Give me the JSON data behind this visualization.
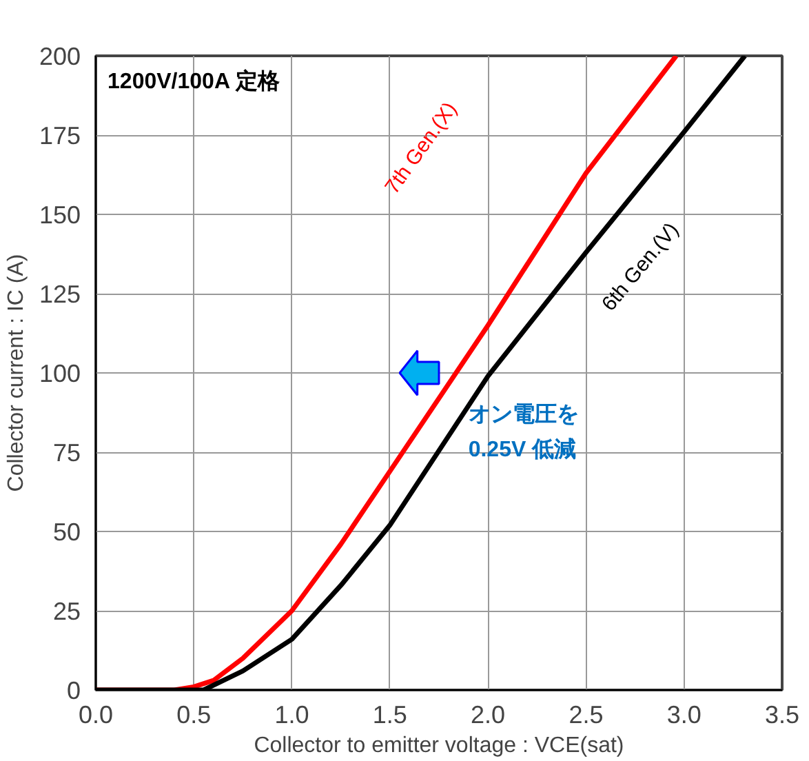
{
  "chart_data": {
    "type": "line",
    "xlabel": "Collector to emitter voltage : VCE(sat)",
    "ylabel": "Collector current : IC (A)",
    "xlim": [
      0,
      3.5
    ],
    "ylim": [
      0,
      200
    ],
    "xticks": [
      {
        "value": 0,
        "label": "0.0"
      },
      {
        "value": 0.5,
        "label": "0.5"
      },
      {
        "value": 1,
        "label": "1.0"
      },
      {
        "value": 1.5,
        "label": "1.5"
      },
      {
        "value": 2,
        "label": "2.0"
      },
      {
        "value": 2.5,
        "label": "2.5"
      },
      {
        "value": 3,
        "label": "3.0"
      },
      {
        "value": 3.5,
        "label": "3.5"
      }
    ],
    "yticks": [
      0,
      25,
      50,
      75,
      100,
      125,
      150,
      175,
      200
    ],
    "grid": true,
    "marker": "none",
    "line_style": "solid",
    "annotations": [
      "1200V/100A 定格",
      "オン電圧を\n0.25V 低減"
    ],
    "series": [
      {
        "name": "7th Gen.(X)",
        "color": "#ff0000",
        "x": [
          0,
          0.4,
          0.5,
          0.6,
          0.75,
          1.0,
          1.25,
          1.5,
          2.0,
          2.5,
          2.96
        ],
        "values": [
          0,
          0,
          1,
          3,
          10,
          25,
          46,
          69,
          115,
          163,
          200
        ]
      },
      {
        "name": "6th Gen.(V)",
        "color": "#000000",
        "x": [
          0,
          0.4,
          0.55,
          0.75,
          1.0,
          1.25,
          1.5,
          2.0,
          2.5,
          3.0,
          3.31
        ],
        "values": [
          0,
          0,
          0,
          6,
          16,
          33,
          52,
          99,
          138,
          176,
          200
        ]
      }
    ]
  }
}
